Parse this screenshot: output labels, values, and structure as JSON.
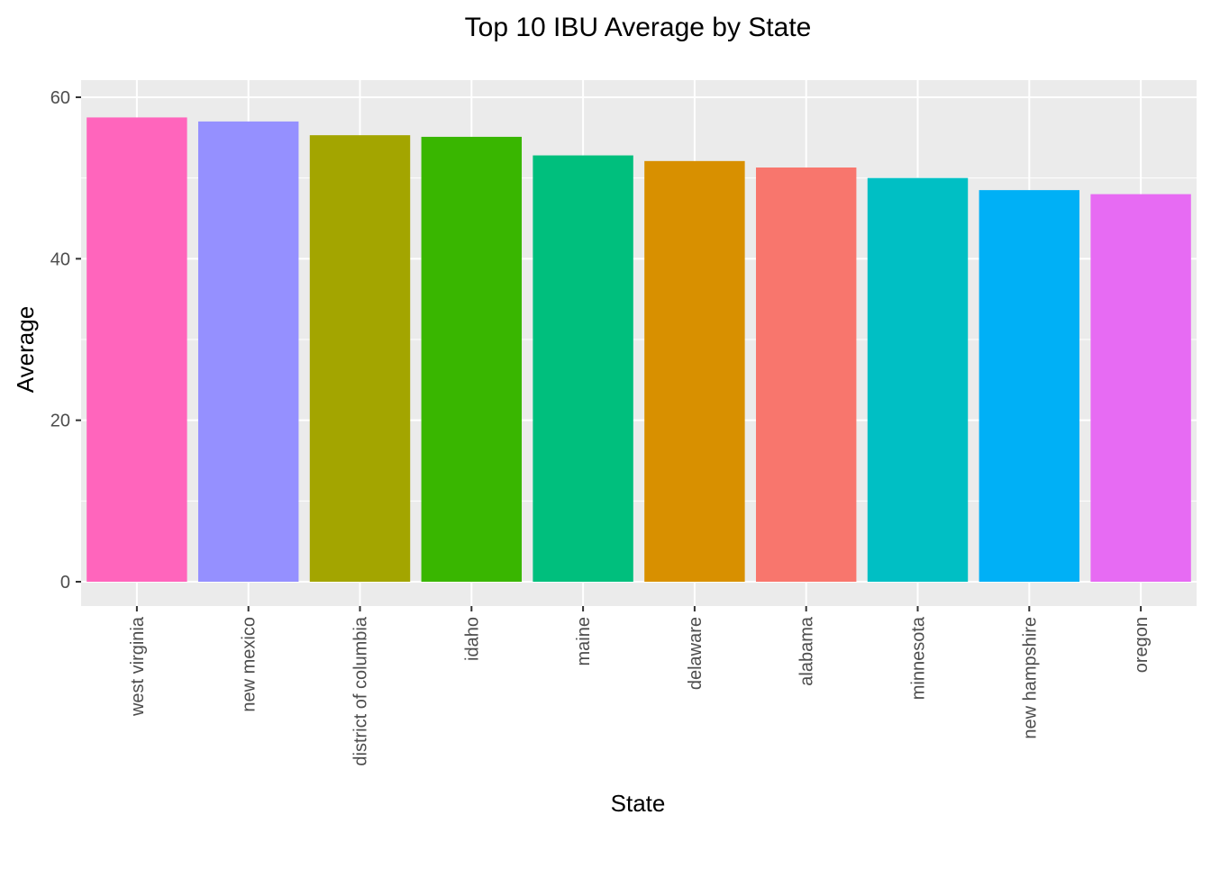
{
  "chart_data": {
    "type": "bar",
    "title": "Top 10 IBU Average by State",
    "xlabel": "State",
    "ylabel": "Average",
    "categories": [
      "west virginia",
      "new mexico",
      "district of columbia",
      "idaho",
      "maine",
      "delaware",
      "alabama",
      "minnesota",
      "new hampshire",
      "oregon"
    ],
    "values": [
      57.5,
      57.0,
      55.3,
      55.1,
      52.8,
      52.1,
      51.3,
      50.0,
      48.5,
      48.0
    ],
    "colors": [
      "#FF65BC",
      "#9590FF",
      "#A3A500",
      "#39B600",
      "#00BF7D",
      "#D89000",
      "#F8766D",
      "#00BFC4",
      "#00B0F6",
      "#E76BF3"
    ],
    "ylim": [
      -3,
      60.3
    ],
    "yticks": [
      0,
      20,
      40,
      60
    ],
    "tick_label_rotation": "vertical",
    "legend": "none",
    "grid": true
  }
}
